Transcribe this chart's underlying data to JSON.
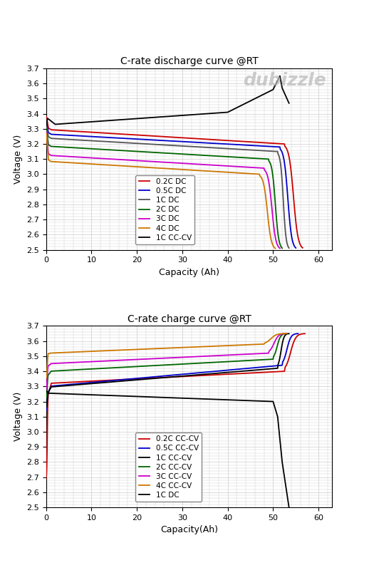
{
  "title1": "C-rate discharge curve @RT",
  "title2": "C-rate charge curve @RT",
  "xlabel1": "Capacity (Ah)",
  "xlabel2": "Capacity(Ah)",
  "ylabel": "Voltage (V)",
  "ylim": [
    2.5,
    3.7
  ],
  "xlim": [
    0,
    63
  ],
  "yticks": [
    2.5,
    2.6,
    2.7,
    2.8,
    2.9,
    3.0,
    3.1,
    3.2,
    3.3,
    3.4,
    3.5,
    3.6,
    3.7
  ],
  "xticks": [
    0,
    10,
    20,
    30,
    40,
    50,
    60
  ],
  "bg_color": "#ffffff",
  "grid_color": "#cccccc",
  "legend_fontsize": 7.5,
  "axis_fontsize": 9,
  "title_fontsize": 10,
  "discharge": {
    "0.2C DC": {
      "color": "#cc0000",
      "v0": 3.38,
      "v_spike": 3.38,
      "plateau": 3.295,
      "plateau_end": 3.2,
      "knee_x": 52.5,
      "end_x": 56.5,
      "end_v": 2.5
    },
    "0.5C DC": {
      "color": "#0000cc",
      "v0": 3.35,
      "v_spike": 3.35,
      "plateau": 3.265,
      "plateau_end": 3.18,
      "knee_x": 51.5,
      "end_x": 55.0,
      "end_v": 2.5
    },
    "1C DC": {
      "color": "#555555",
      "v0": 3.32,
      "v_spike": 3.32,
      "plateau": 3.238,
      "plateau_end": 3.15,
      "knee_x": 51.0,
      "end_x": 53.5,
      "end_v": 2.5
    },
    "2C DC": {
      "color": "#006600",
      "v0": 3.3,
      "v_spike": 3.39,
      "plateau": 3.185,
      "plateau_end": 3.1,
      "knee_x": 49.0,
      "end_x": 52.0,
      "end_v": 2.5
    },
    "3C DC": {
      "color": "#cc00cc",
      "v0": 3.28,
      "v_spike": 3.28,
      "plateau": 3.125,
      "plateau_end": 3.04,
      "knee_x": 48.0,
      "end_x": 51.5,
      "end_v": 2.5
    },
    "4C DC": {
      "color": "#cc7700",
      "v0": 3.27,
      "v_spike": 3.27,
      "plateau": 3.085,
      "plateau_end": 3.0,
      "knee_x": 47.0,
      "end_x": 50.5,
      "end_v": 2.5
    },
    "1C CC-CV": {
      "color": "#000000",
      "special": "cccv_discharge"
    }
  },
  "charge": {
    "0.2C CC-CV": {
      "color": "#cc0000",
      "v0": 2.68,
      "rise_v": 3.265,
      "plateau": 3.32,
      "plateau_end": 3.4,
      "knee_x": 52.5,
      "end_x": 57.0,
      "end_v": 3.65
    },
    "0.5C CC-CV": {
      "color": "#0000cc",
      "v0": 3.14,
      "rise_v": 3.265,
      "plateau": 3.3,
      "plateau_end": 3.44,
      "knee_x": 52.0,
      "end_x": 55.5,
      "end_v": 3.65
    },
    "1C CC-CV": {
      "color": "#000000",
      "v0": 3.16,
      "rise_v": 3.265,
      "plateau": 3.295,
      "plateau_end": 3.42,
      "knee_x": 51.0,
      "end_x": 53.5,
      "end_v": 3.65
    },
    "2C CC-CV": {
      "color": "#006600",
      "v0": 3.22,
      "rise_v": 3.38,
      "plateau": 3.4,
      "plateau_end": 3.48,
      "knee_x": 50.0,
      "end_x": 53.0,
      "end_v": 3.65
    },
    "3C CC-CV": {
      "color": "#cc00cc",
      "v0": 3.28,
      "rise_v": 3.44,
      "plateau": 3.45,
      "plateau_end": 3.52,
      "knee_x": 49.0,
      "end_x": 53.0,
      "end_v": 3.65
    },
    "4C CC-CV": {
      "color": "#cc7700",
      "v0": 3.35,
      "rise_v": 3.52,
      "plateau": 3.52,
      "plateau_end": 3.58,
      "knee_x": 48.0,
      "end_x": 53.0,
      "end_v": 3.65
    },
    "1C DC": {
      "color": "#000000",
      "special": "dc_in_charge"
    }
  },
  "discharge_legend_order": [
    "0.2C DC",
    "0.5C DC",
    "1C DC",
    "2C DC",
    "3C DC",
    "4C DC",
    "1C CC-CV"
  ],
  "charge_legend_order": [
    "0.2C CC-CV",
    "0.5C CC-CV",
    "1C CC-CV",
    "2C CC-CV",
    "3C CC-CV",
    "4C CC-CV",
    "1C DC"
  ]
}
